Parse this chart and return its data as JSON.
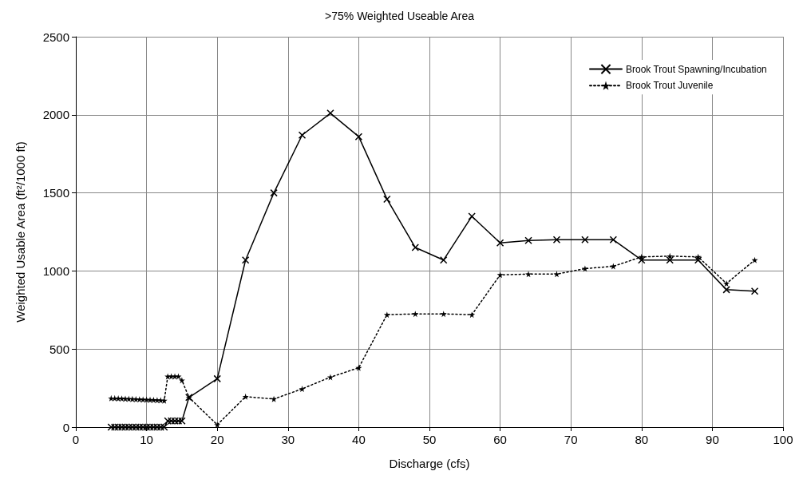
{
  "chart_data": {
    "type": "line",
    "title": ">75% Weighted Useable Area",
    "xlabel": "Discharge (cfs)",
    "ylabel": "Weighted Usable Area (ft²/1000 ft)",
    "xlim": [
      0,
      100
    ],
    "xticks": [
      0,
      10,
      20,
      30,
      40,
      50,
      60,
      70,
      80,
      90,
      100
    ],
    "ylim": [
      0,
      2500
    ],
    "yticks": [
      0,
      500,
      1000,
      1500,
      2000,
      2500
    ],
    "grid": true,
    "legend": "top right",
    "series": [
      {
        "name": "Brook Trout Spawning/Incubation",
        "color": "#000000",
        "marker": "cross",
        "line_style": "solid",
        "x": [
          5,
          5.5,
          6,
          6.5,
          7,
          7.5,
          8,
          8.5,
          9,
          9.5,
          10,
          10.5,
          11,
          11.5,
          12,
          12.5,
          13,
          13.5,
          14,
          14.5,
          15,
          16,
          20,
          24,
          28,
          32,
          36,
          40,
          44,
          48,
          52,
          56,
          60,
          64,
          68,
          72,
          76,
          80,
          84,
          88,
          92,
          96
        ],
        "values": [
          0,
          0,
          0,
          0,
          0,
          0,
          0,
          0,
          0,
          0,
          0,
          0,
          0,
          0,
          0,
          0,
          40,
          40,
          40,
          40,
          40,
          190,
          310,
          1070,
          1500,
          1870,
          2010,
          1860,
          1460,
          1150,
          1070,
          1350,
          1180,
          1195,
          1200,
          1200,
          1200,
          1070,
          1070,
          1070,
          880,
          870
        ]
      },
      {
        "name": "Brook Trout Juvenile",
        "color": "#000000",
        "marker": "star",
        "line_style": "dotted",
        "x": [
          5,
          5.5,
          6,
          6.5,
          7,
          7.5,
          8,
          8.5,
          9,
          9.5,
          10,
          10.5,
          11,
          11.5,
          12,
          12.5,
          13,
          13.5,
          14,
          14.5,
          15,
          16,
          20,
          24,
          28,
          32,
          36,
          40,
          44,
          48,
          52,
          56,
          60,
          64,
          68,
          72,
          76,
          80,
          84,
          88,
          92,
          96
        ],
        "values": [
          185,
          185,
          184,
          183,
          182,
          181,
          180,
          179,
          178,
          177,
          176,
          175,
          174,
          173,
          172,
          170,
          325,
          325,
          325,
          325,
          300,
          190,
          15,
          195,
          180,
          245,
          320,
          380,
          720,
          725,
          725,
          720,
          975,
          980,
          980,
          1015,
          1030,
          1090,
          1095,
          1090,
          920,
          1070
        ]
      }
    ]
  }
}
